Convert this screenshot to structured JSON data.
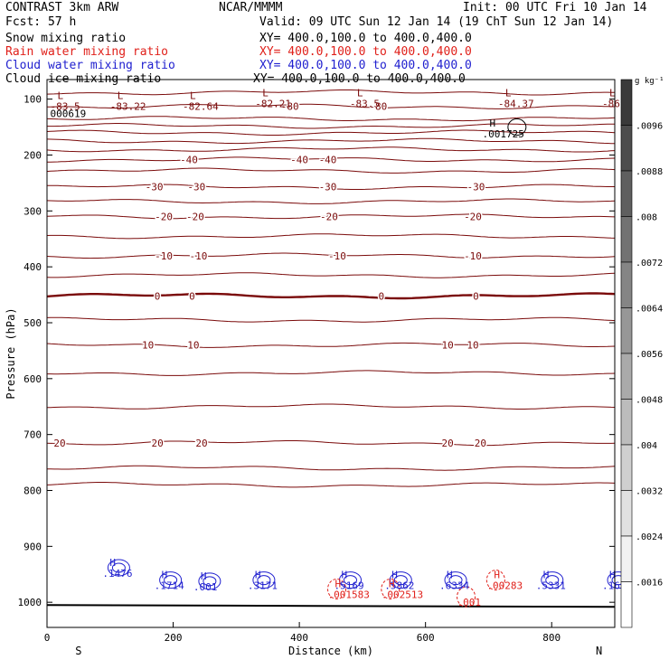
{
  "header": {
    "model": "CONTRAST  3km ARW",
    "center": "NCAR/MMMM",
    "init": "Init: 00 UTC Fri 10 Jan 14",
    "fcst": "Fcst:   57 h",
    "valid": "Valid: 09 UTC Sun 12 Jan 14 (19 ChT Sun 12 Jan 14)"
  },
  "fields": [
    {
      "name": "Snow mixing ratio",
      "xy": "XY= 400.0,100.0 to 400.0,400.0",
      "color": "#000000"
    },
    {
      "name": "Rain water mixing ratio",
      "xy": "XY= 400.0,100.0 to 400.0,400.0",
      "color": "#e0201a"
    },
    {
      "name": "Cloud water mixing ratio",
      "xy": "XY= 400.0,100.0 to 400.0,400.0",
      "color": "#1f1fcf"
    },
    {
      "name": "Cloud ice mixing ratio",
      "xy": "XY= 400.0,100.0 to 400.0,400.0",
      "color": "#000000"
    }
  ],
  "chart_data": {
    "type": "contour-cross-section",
    "xlabel": "Distance (km)",
    "ylabel": "Pressure (hPa)",
    "xlim": [
      0,
      900
    ],
    "ylim": [
      1045,
      65
    ],
    "x_ticks": [
      0,
      200,
      400,
      600,
      800
    ],
    "y_ticks": [
      100,
      200,
      300,
      400,
      500,
      600,
      700,
      800,
      900,
      1000
    ],
    "endpoints": {
      "left": "S",
      "right": "N"
    },
    "ground_pressure": 1005,
    "temperature_isotherms": [
      {
        "p": 88,
        "label": ""
      },
      {
        "p": 113,
        "label": "-80"
      },
      {
        "p": 135,
        "label": ""
      },
      {
        "p": 148,
        "label": ""
      },
      {
        "p": 160,
        "label": ""
      },
      {
        "p": 175,
        "label": ""
      },
      {
        "p": 190,
        "label": ""
      },
      {
        "p": 208,
        "label": "-40"
      },
      {
        "p": 228,
        "label": ""
      },
      {
        "p": 257,
        "label": "-30"
      },
      {
        "p": 283,
        "label": ""
      },
      {
        "p": 310,
        "label": "-20"
      },
      {
        "p": 345,
        "label": ""
      },
      {
        "p": 380,
        "label": "-10"
      },
      {
        "p": 415,
        "label": ""
      },
      {
        "p": 452,
        "label": "0",
        "bold": true
      },
      {
        "p": 495,
        "label": ""
      },
      {
        "p": 540,
        "label": "10"
      },
      {
        "p": 590,
        "label": ""
      },
      {
        "p": 650,
        "label": ""
      },
      {
        "p": 715,
        "label": "20"
      },
      {
        "p": 760,
        "label": ""
      },
      {
        "p": 790,
        "label": ""
      }
    ],
    "isotherm_labels": [
      {
        "text": "-80",
        "x": 385,
        "p": 113
      },
      {
        "text": "-80",
        "x": 525,
        "p": 113
      },
      {
        "text": "-40",
        "x": 225,
        "p": 208
      },
      {
        "text": "-40",
        "x": 400,
        "p": 208
      },
      {
        "text": "-40",
        "x": 445,
        "p": 208
      },
      {
        "text": "-30",
        "x": 170,
        "p": 257
      },
      {
        "text": "-30",
        "x": 237,
        "p": 257
      },
      {
        "text": "-30",
        "x": 445,
        "p": 257
      },
      {
        "text": "-30",
        "x": 680,
        "p": 257
      },
      {
        "text": "-20",
        "x": 185,
        "p": 310
      },
      {
        "text": "-20",
        "x": 235,
        "p": 310
      },
      {
        "text": "-20",
        "x": 447,
        "p": 310
      },
      {
        "text": "-20",
        "x": 675,
        "p": 310
      },
      {
        "text": "-10",
        "x": 185,
        "p": 380
      },
      {
        "text": "-10",
        "x": 240,
        "p": 380
      },
      {
        "text": "-10",
        "x": 460,
        "p": 380
      },
      {
        "text": "-10",
        "x": 675,
        "p": 380
      },
      {
        "text": "0",
        "x": 175,
        "p": 452
      },
      {
        "text": "0",
        "x": 230,
        "p": 452
      },
      {
        "text": "0",
        "x": 530,
        "p": 452
      },
      {
        "text": "0",
        "x": 680,
        "p": 452
      },
      {
        "text": "10",
        "x": 160,
        "p": 540
      },
      {
        "text": "10",
        "x": 232,
        "p": 540
      },
      {
        "text": "10",
        "x": 635,
        "p": 540
      },
      {
        "text": "10",
        "x": 675,
        "p": 540
      },
      {
        "text": "20",
        "x": 20,
        "p": 715
      },
      {
        "text": "20",
        "x": 175,
        "p": 715
      },
      {
        "text": "20",
        "x": 245,
        "p": 715
      },
      {
        "text": "20",
        "x": 635,
        "p": 715
      },
      {
        "text": "20",
        "x": 687,
        "p": 715
      }
    ],
    "extrema": [
      {
        "kind": "L",
        "value": "-83.5",
        "x": 5,
        "p": 113,
        "color": "#7a0a0a"
      },
      {
        "kind": "L",
        "value": "-83.22",
        "x": 100,
        "p": 113,
        "color": "#7a0a0a"
      },
      {
        "kind": "L",
        "value": "-82.64",
        "x": 215,
        "p": 113,
        "color": "#7a0a0a"
      },
      {
        "kind": "L",
        "value": "-82.21",
        "x": 330,
        "p": 108,
        "color": "#7a0a0a"
      },
      {
        "kind": "L",
        "value": "-83.5",
        "x": 480,
        "p": 108,
        "color": "#7a0a0a"
      },
      {
        "kind": "L",
        "value": "-84.37",
        "x": 715,
        "p": 108,
        "color": "#7a0a0a"
      },
      {
        "kind": "L",
        "value": "-86",
        "x": 880,
        "p": 108,
        "color": "#7a0a0a"
      },
      {
        "kind": "value",
        "value": "000619",
        "x": 5,
        "p": 126,
        "color": "#000000"
      },
      {
        "kind": "H",
        "value": ".001725",
        "x": 690,
        "p": 162,
        "color": "#000000"
      },
      {
        "kind": "H",
        "value": ".1476",
        "x": 88,
        "p": 948,
        "color": "#1f1fcf"
      },
      {
        "kind": "H",
        "value": ".1714",
        "x": 170,
        "p": 970,
        "color": "#1f1fcf"
      },
      {
        "kind": "H",
        "value": ".001",
        "x": 232,
        "p": 972,
        "color": "#1f1fcf"
      },
      {
        "kind": "H",
        "value": ".3171",
        "x": 318,
        "p": 970,
        "color": "#1f1fcf"
      },
      {
        "kind": "H",
        "value": ".5169",
        "x": 455,
        "p": 970,
        "color": "#1f1fcf"
      },
      {
        "kind": "H",
        "value": ".5862",
        "x": 535,
        "p": 970,
        "color": "#1f1fcf"
      },
      {
        "kind": "H",
        "value": ".6334",
        "x": 622,
        "p": 970,
        "color": "#1f1fcf"
      },
      {
        "kind": "H",
        "value": ".5331",
        "x": 775,
        "p": 970,
        "color": "#1f1fcf"
      },
      {
        "kind": "H",
        "value": ".169",
        "x": 880,
        "p": 970,
        "color": "#1f1fcf"
      },
      {
        "kind": "H",
        "value": ".001583",
        "x": 445,
        "p": 986,
        "color": "#e0201a"
      },
      {
        "kind": "H",
        "value": ".002513",
        "x": 530,
        "p": 986,
        "color": "#e0201a"
      },
      {
        "kind": "H",
        "value": ".00283",
        "x": 697,
        "p": 970,
        "color": "#e0201a"
      },
      {
        "kind": "value",
        "value": ".001",
        "x": 650,
        "p": 1000,
        "color": "#e0201a"
      }
    ],
    "colorbar": {
      "unit": "g kg⁻¹",
      "labels": [
        ".0096",
        ".0088",
        ".008",
        ".0072",
        ".0064",
        ".0056",
        ".0048",
        ".004",
        ".0032",
        ".0024",
        ".0016"
      ],
      "colors": [
        "#3a3a3a",
        "#4d4d4d",
        "#5f5f5f",
        "#727272",
        "#858585",
        "#979797",
        "#aaaaaa",
        "#bcbcbc",
        "#cfcfcf",
        "#e1e1e1",
        "#f1f1f1",
        "#ffffff"
      ]
    }
  }
}
